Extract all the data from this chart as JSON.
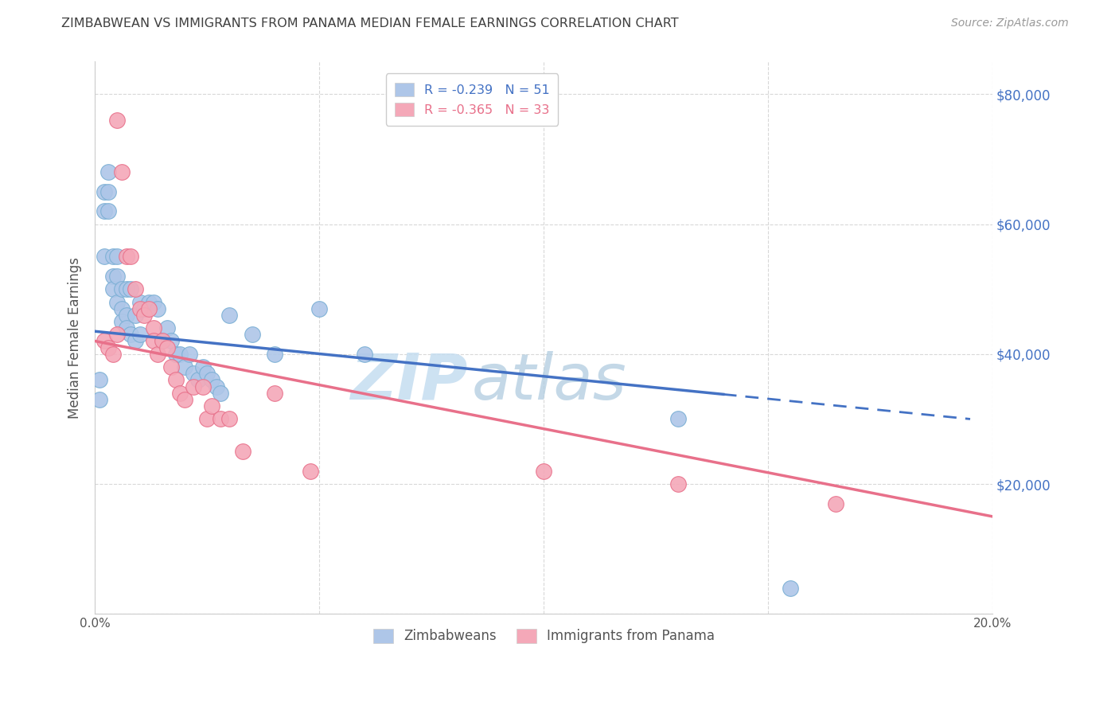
{
  "title": "ZIMBABWEAN VS IMMIGRANTS FROM PANAMA MEDIAN FEMALE EARNINGS CORRELATION CHART",
  "source": "Source: ZipAtlas.com",
  "ylabel": "Median Female Earnings",
  "x_min": 0.0,
  "x_max": 0.2,
  "y_min": 0,
  "y_max": 85000,
  "blue_line_color": "#4472c4",
  "pink_line_color": "#e8708a",
  "blue_scatter_color": "#aec6e8",
  "blue_scatter_edge": "#7aafd4",
  "pink_scatter_color": "#f4a8b8",
  "pink_scatter_edge": "#e8708a",
  "watermark_zip_color": "#cde0f0",
  "watermark_atlas_color": "#b8d0e8",
  "grid_color": "#d8d8d8",
  "title_color": "#404040",
  "right_axis_label_color": "#4472c4",
  "legend_entries": [
    {
      "label": "R = -0.239   N = 51",
      "facecolor": "#aec6e8",
      "textcolor": "#4472c4"
    },
    {
      "label": "R = -0.365   N = 33",
      "facecolor": "#f4a8b8",
      "textcolor": "#e8708a"
    }
  ],
  "legend_bottom": [
    {
      "label": "Zimbabweans",
      "facecolor": "#aec6e8"
    },
    {
      "label": "Immigrants from Panama",
      "facecolor": "#f4a8b8"
    }
  ],
  "zim_x": [
    0.001,
    0.001,
    0.002,
    0.002,
    0.002,
    0.003,
    0.003,
    0.003,
    0.004,
    0.004,
    0.004,
    0.005,
    0.005,
    0.005,
    0.006,
    0.006,
    0.006,
    0.007,
    0.007,
    0.007,
    0.008,
    0.008,
    0.009,
    0.009,
    0.01,
    0.01,
    0.011,
    0.012,
    0.013,
    0.014,
    0.015,
    0.016,
    0.017,
    0.018,
    0.019,
    0.02,
    0.021,
    0.022,
    0.023,
    0.024,
    0.025,
    0.026,
    0.027,
    0.028,
    0.03,
    0.035,
    0.04,
    0.05,
    0.06,
    0.13,
    0.155
  ],
  "zim_y": [
    36000,
    33000,
    65000,
    62000,
    55000,
    68000,
    65000,
    62000,
    55000,
    52000,
    50000,
    55000,
    52000,
    48000,
    50000,
    47000,
    45000,
    50000,
    46000,
    44000,
    50000,
    43000,
    46000,
    42000,
    48000,
    43000,
    47000,
    48000,
    48000,
    47000,
    42000,
    44000,
    42000,
    40000,
    40000,
    38000,
    40000,
    37000,
    36000,
    38000,
    37000,
    36000,
    35000,
    34000,
    46000,
    43000,
    40000,
    47000,
    40000,
    30000,
    4000
  ],
  "pan_x": [
    0.002,
    0.003,
    0.004,
    0.005,
    0.005,
    0.006,
    0.007,
    0.008,
    0.009,
    0.01,
    0.011,
    0.012,
    0.013,
    0.013,
    0.014,
    0.015,
    0.016,
    0.017,
    0.018,
    0.019,
    0.02,
    0.022,
    0.024,
    0.025,
    0.026,
    0.028,
    0.03,
    0.033,
    0.04,
    0.048,
    0.1,
    0.13,
    0.165
  ],
  "pan_y": [
    42000,
    41000,
    40000,
    43000,
    76000,
    68000,
    55000,
    55000,
    50000,
    47000,
    46000,
    47000,
    44000,
    42000,
    40000,
    42000,
    41000,
    38000,
    36000,
    34000,
    33000,
    35000,
    35000,
    30000,
    32000,
    30000,
    30000,
    25000,
    34000,
    22000,
    22000,
    20000,
    17000
  ],
  "blue_line_solid_end": 0.14,
  "blue_line_x_end": 0.195,
  "pink_line_x_end": 0.2
}
